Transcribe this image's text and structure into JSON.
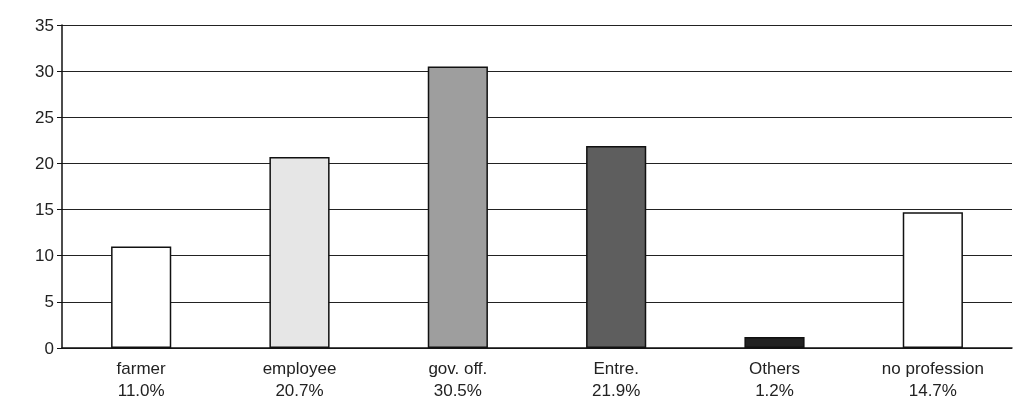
{
  "chart_data": {
    "type": "bar",
    "categories": [
      "farmer",
      "employee",
      "gov. off.",
      "Entre.",
      "Others",
      "no profession"
    ],
    "values": [
      11.0,
      20.7,
      30.5,
      21.9,
      1.2,
      14.7
    ],
    "value_labels": [
      "11.0%",
      "20.7%",
      "30.5%",
      "21.9%",
      "1.2%",
      "14.7%"
    ],
    "colors": [
      "#ffffff",
      "#e6e6e6",
      "#9e9e9e",
      "#5e5e5e",
      "#222222",
      "#ffffff"
    ],
    "ylim": [
      0,
      35
    ],
    "yticks": [
      0,
      5,
      10,
      15,
      20,
      25,
      30,
      35
    ],
    "grid": "y"
  }
}
